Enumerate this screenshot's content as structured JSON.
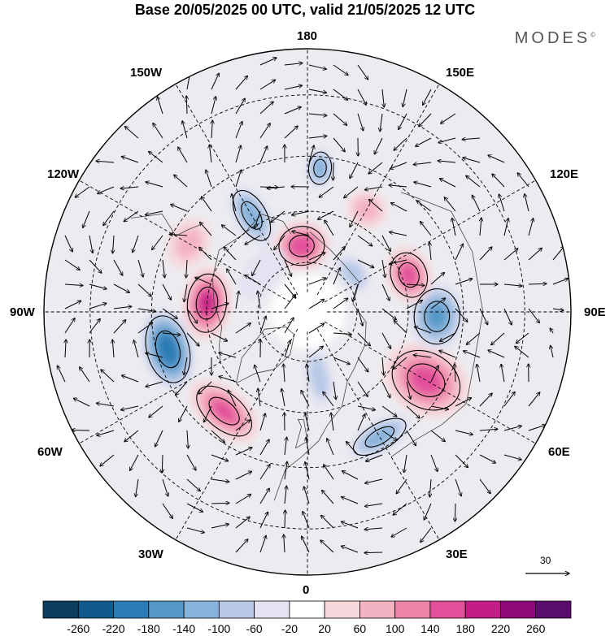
{
  "title": "Base 20/05/2025 00 UTC, valid 21/05/2025 12 UTC",
  "brand": "MODES",
  "brand_mark": "©",
  "longitude_labels": {
    "top": "180",
    "bottom": "0",
    "left": "90W",
    "right": "90E",
    "nw_upper": "150W",
    "nw_lower": "120W",
    "ne_upper": "150E",
    "ne_lower": "120E",
    "sw_upper": "60W",
    "sw_lower": "30W",
    "se_upper": "60E",
    "se_lower": "30E"
  },
  "vector_scale": {
    "label": "30"
  },
  "colorbar": {
    "ticks": [
      "-260",
      "-220",
      "-180",
      "-140",
      "-100",
      "-60",
      "-20",
      "20",
      "60",
      "100",
      "140",
      "180",
      "220",
      "260"
    ],
    "colors": [
      "#0b3d5f",
      "#105a8c",
      "#2b7cb4",
      "#5598c8",
      "#87b3da",
      "#b7c9e6",
      "#e3e3f2",
      "#ffffff",
      "#f7d8dc",
      "#f4b3c2",
      "#ee84aa",
      "#e2509a",
      "#c41d87",
      "#8e0a78",
      "#5a0d6e"
    ]
  },
  "anomalies": [
    {
      "lon": -175,
      "lat": 70,
      "value": 190,
      "rx": 28,
      "ry": 24
    },
    {
      "lon": 175,
      "lat": 48,
      "value": -150,
      "rx": 14,
      "ry": 20
    },
    {
      "lon": -150,
      "lat": 57,
      "value": -140,
      "rx": 18,
      "ry": 34
    },
    {
      "lon": -95,
      "lat": 60,
      "value": 200,
      "rx": 36,
      "ry": 24
    },
    {
      "lon": -75,
      "lat": 48,
      "value": -230,
      "rx": 42,
      "ry": 26
    },
    {
      "lon": -40,
      "lat": 52,
      "value": 160,
      "rx": 40,
      "ry": 22
    },
    {
      "lon": 10,
      "lat": 70,
      "value": -90,
      "rx": 14,
      "ry": 32
    },
    {
      "lon": 30,
      "lat": 48,
      "value": -130,
      "rx": 36,
      "ry": 16
    },
    {
      "lon": 60,
      "lat": 50,
      "value": 170,
      "rx": 34,
      "ry": 44
    },
    {
      "lon": 88,
      "lat": 52,
      "value": -160,
      "rx": 34,
      "ry": 28
    },
    {
      "lon": 110,
      "lat": 58,
      "value": 170,
      "rx": 28,
      "ry": 22
    },
    {
      "lon": 130,
      "lat": 72,
      "value": -110,
      "rx": 22,
      "ry": 14
    },
    {
      "lon": 150,
      "lat": 55,
      "value": 90,
      "rx": 20,
      "ry": 18
    },
    {
      "lon": -120,
      "lat": 50,
      "value": 80,
      "rx": 26,
      "ry": 20
    },
    {
      "lon": -130,
      "lat": 72,
      "value": -70,
      "rx": 30,
      "ry": 18
    }
  ]
}
